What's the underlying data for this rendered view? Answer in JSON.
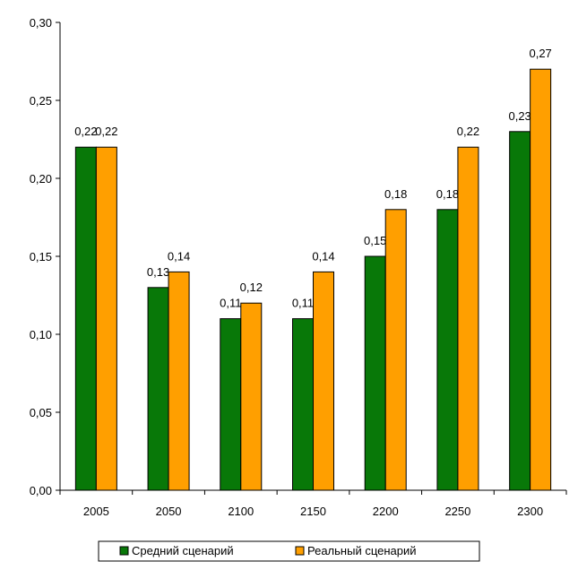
{
  "chart_data": {
    "type": "bar",
    "categories": [
      "2005",
      "2050",
      "2100",
      "2150",
      "2200",
      "2250",
      "2300"
    ],
    "series": [
      {
        "name": "Средний сценарий",
        "values": [
          0.22,
          0.13,
          0.11,
          0.11,
          0.15,
          0.18,
          0.23
        ],
        "labels": [
          "0,22",
          "0,13",
          "0,11",
          "0,11",
          "0,15",
          "0,18",
          "0,23"
        ],
        "color": "#087808"
      },
      {
        "name": "Реальный сценарий",
        "values": [
          0.22,
          0.14,
          0.12,
          0.14,
          0.18,
          0.22,
          0.27
        ],
        "labels": [
          "0,22",
          "0,14",
          "0,12",
          "0,14",
          "0,18",
          "0,22",
          "0,27"
        ],
        "color": "#ff9f00"
      }
    ],
    "yticks": [
      0,
      0.05,
      0.1,
      0.15,
      0.2,
      0.25,
      0.3
    ],
    "ytick_labels": [
      "0,00",
      "0,05",
      "0,10",
      "0,15",
      "0,20",
      "0,25",
      "0,30"
    ],
    "ylim": [
      0,
      0.3
    ],
    "title": "",
    "xlabel": "",
    "ylabel": "",
    "grid": false,
    "legend": "bottom"
  }
}
